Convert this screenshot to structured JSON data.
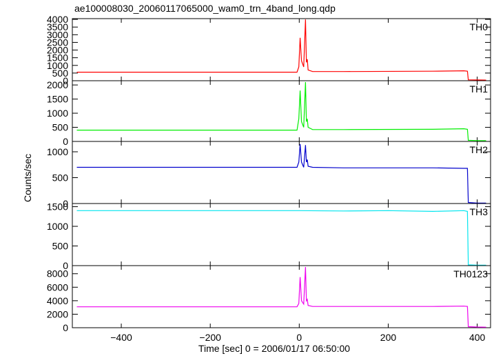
{
  "chart_data": {
    "type": "line",
    "title": "ae100008030_20060117065000_wam0_trn_4band_long.qdp",
    "xlabel": "Time [sec] 0 = 2006/01/17 06:50:00",
    "ylabel": "Counts/sec",
    "xlim": [
      -510,
      430
    ],
    "xticks": [
      -400,
      -200,
      0,
      200,
      400
    ],
    "grid": false,
    "panels": [
      {
        "name": "TH0",
        "color": "#ff0000",
        "ylim": [
          0,
          4050
        ],
        "yticks": [
          0,
          500,
          1000,
          1500,
          2000,
          2500,
          3000,
          3500,
          4000
        ],
        "x": [
          -500,
          -300,
          -100,
          -5,
          -1,
          2,
          5,
          10,
          14,
          16,
          18,
          20,
          30,
          100,
          300,
          370,
          378,
          380,
          400,
          420
        ],
        "y": [
          560,
          560,
          560,
          560,
          900,
          2800,
          1300,
          900,
          4000,
          1200,
          1400,
          700,
          600,
          600,
          620,
          650,
          620,
          60,
          50,
          40
        ]
      },
      {
        "name": "TH1",
        "color": "#00ee00",
        "ylim": [
          0,
          2150
        ],
        "yticks": [
          0,
          500,
          1000,
          1500,
          2000
        ],
        "x": [
          -500,
          -300,
          -100,
          -5,
          -1,
          2,
          5,
          10,
          14,
          16,
          18,
          20,
          30,
          100,
          300,
          370,
          378,
          380,
          400,
          420
        ],
        "y": [
          400,
          400,
          400,
          400,
          800,
          1800,
          700,
          500,
          2100,
          700,
          800,
          500,
          420,
          420,
          430,
          450,
          430,
          40,
          30,
          30
        ]
      },
      {
        "name": "TH2",
        "color": "#0000cc",
        "ylim": [
          0,
          1200
        ],
        "yticks": [
          0,
          500,
          1000
        ],
        "x": [
          -500,
          -300,
          -100,
          -5,
          -1,
          2,
          5,
          10,
          14,
          16,
          18,
          20,
          30,
          100,
          300,
          370,
          378,
          380,
          400,
          420
        ],
        "y": [
          700,
          700,
          700,
          700,
          800,
          1150,
          800,
          700,
          1130,
          800,
          850,
          720,
          700,
          690,
          690,
          680,
          680,
          20,
          10,
          10
        ]
      },
      {
        "name": "TH3",
        "color": "#00e5ee",
        "ylim": [
          0,
          1580
        ],
        "yticks": [
          0,
          500,
          1000,
          1500
        ],
        "x": [
          -500,
          -300,
          -100,
          0,
          100,
          200,
          300,
          370,
          378,
          380,
          400,
          420
        ],
        "y": [
          1400,
          1400,
          1400,
          1400,
          1390,
          1400,
          1380,
          1400,
          1380,
          20,
          10,
          10
        ]
      },
      {
        "name": "TH0123",
        "color": "#ee00ee",
        "ylim": [
          0,
          9200
        ],
        "yticks": [
          0,
          2000,
          4000,
          6000,
          8000
        ],
        "x": [
          -500,
          -300,
          -100,
          -5,
          -1,
          2,
          5,
          10,
          14,
          16,
          18,
          20,
          30,
          100,
          300,
          370,
          378,
          380,
          400,
          420
        ],
        "y": [
          3100,
          3100,
          3100,
          3100,
          3600,
          7500,
          4000,
          3500,
          9000,
          4000,
          4200,
          3300,
          3150,
          3150,
          3150,
          3200,
          3150,
          150,
          100,
          80
        ]
      }
    ]
  }
}
